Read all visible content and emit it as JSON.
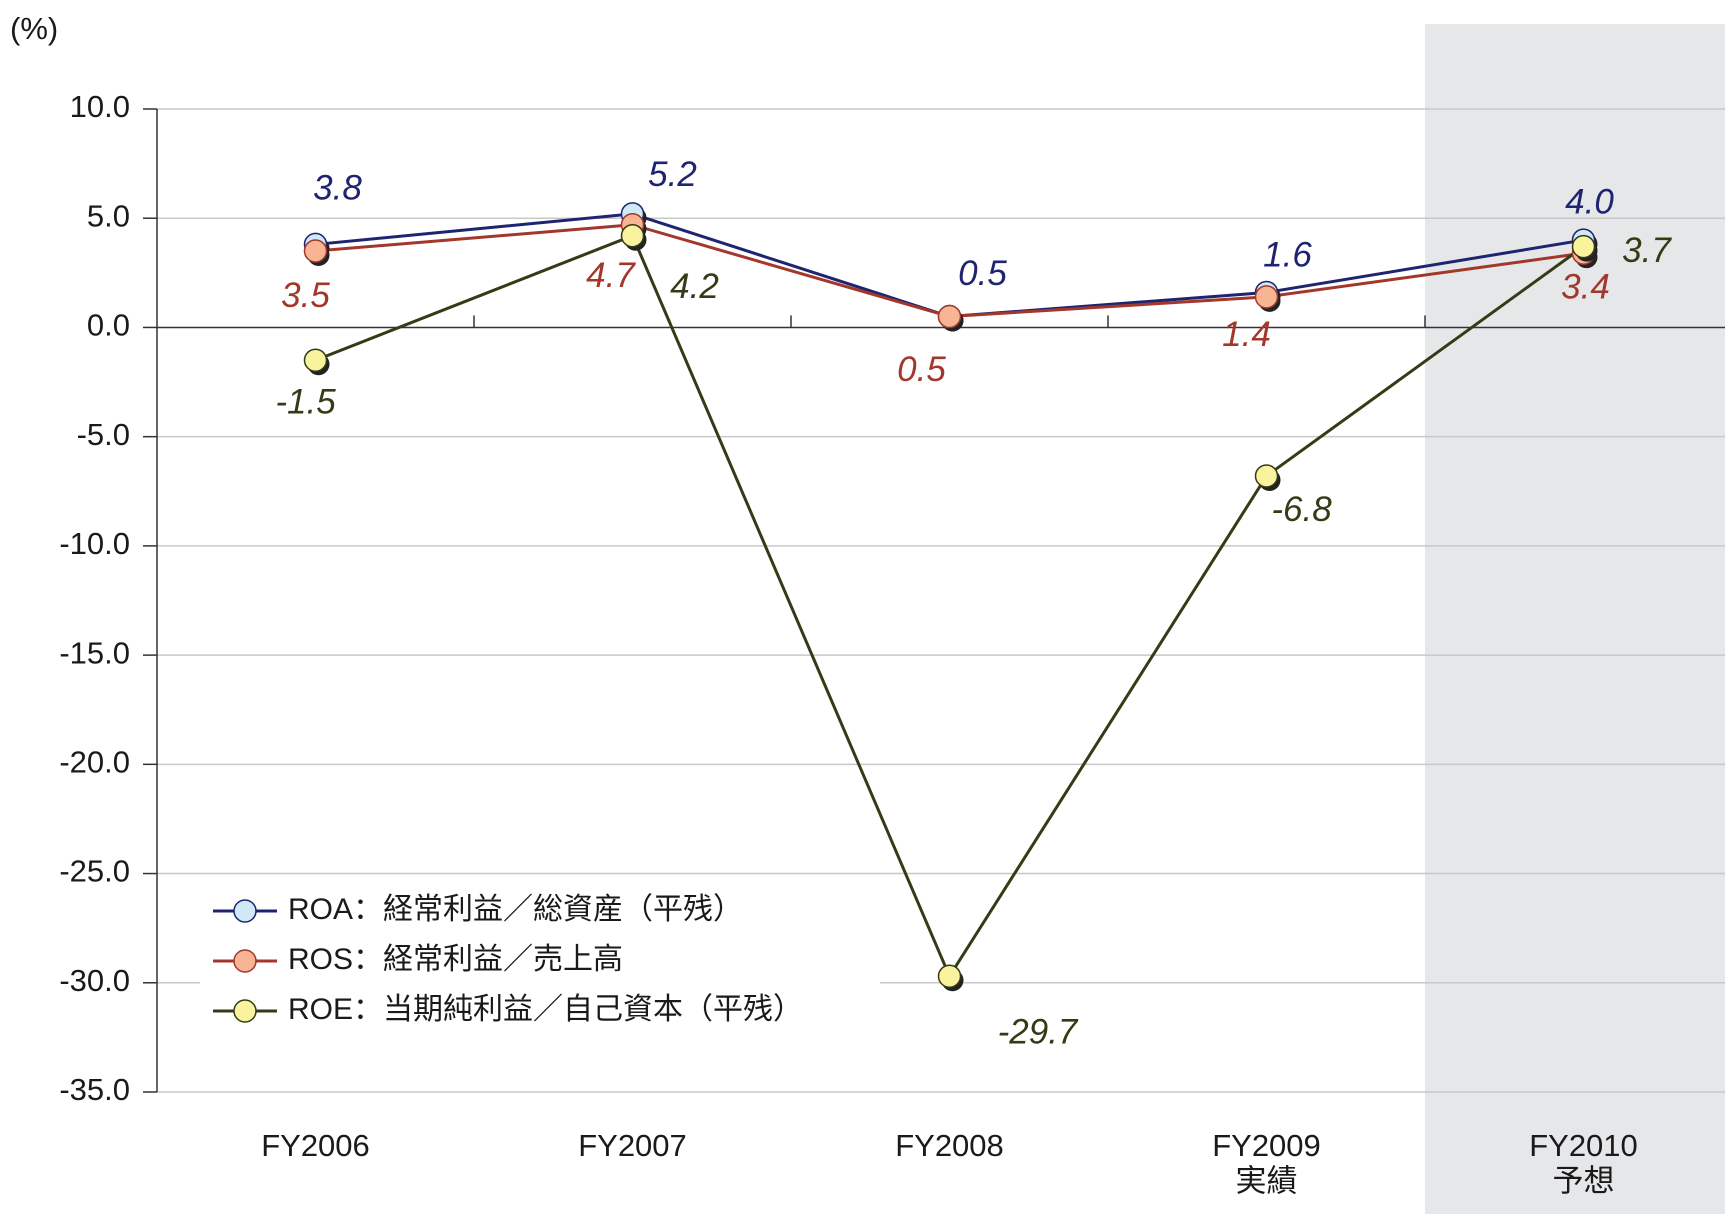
{
  "chart_data": {
    "type": "line",
    "y_label": "(%)",
    "categories": [
      "FY2006",
      "FY2007",
      "FY2008",
      "FY2009\n実績",
      "FY2010\n予想"
    ],
    "ylim": [
      -35,
      10
    ],
    "yticks": [
      {
        "value": 10,
        "label": "10.0"
      },
      {
        "value": 5,
        "label": "5.0"
      },
      {
        "value": 0,
        "label": "0.0"
      },
      {
        "value": -5,
        "label": "-5.0"
      },
      {
        "value": -10,
        "label": "-10.0"
      },
      {
        "value": -15,
        "label": "-15.0"
      },
      {
        "value": -20,
        "label": "-20.0"
      },
      {
        "value": -25,
        "label": "-25.0"
      },
      {
        "value": -30,
        "label": "-30.0"
      },
      {
        "value": -35,
        "label": "-35.0"
      }
    ],
    "grid": true,
    "legend": "lower left",
    "series": [
      {
        "name": "ROA：経常利益／総資産（平残）",
        "color": "#1f2470",
        "marker_color": "#cfe9f7",
        "values": [
          3.8,
          5.2,
          0.5,
          1.6,
          4.0
        ],
        "value_labels": [
          "3.8",
          "5.2",
          "0.5",
          "1.6",
          "4.0"
        ]
      },
      {
        "name": "ROS：経常利益／売上高",
        "color": "#a3372b",
        "marker_color": "#f7b593",
        "values": [
          3.5,
          4.7,
          0.5,
          1.4,
          3.4
        ],
        "value_labels": [
          "3.5",
          "4.7",
          "0.5",
          "1.4",
          "3.4"
        ]
      },
      {
        "name": "ROE：当期純利益／自己資本（平残）",
        "color": "#343b15",
        "marker_color": "#f8f39c",
        "values": [
          -1.5,
          4.2,
          -29.7,
          -6.8,
          3.7
        ]
      }
    ]
  }
}
